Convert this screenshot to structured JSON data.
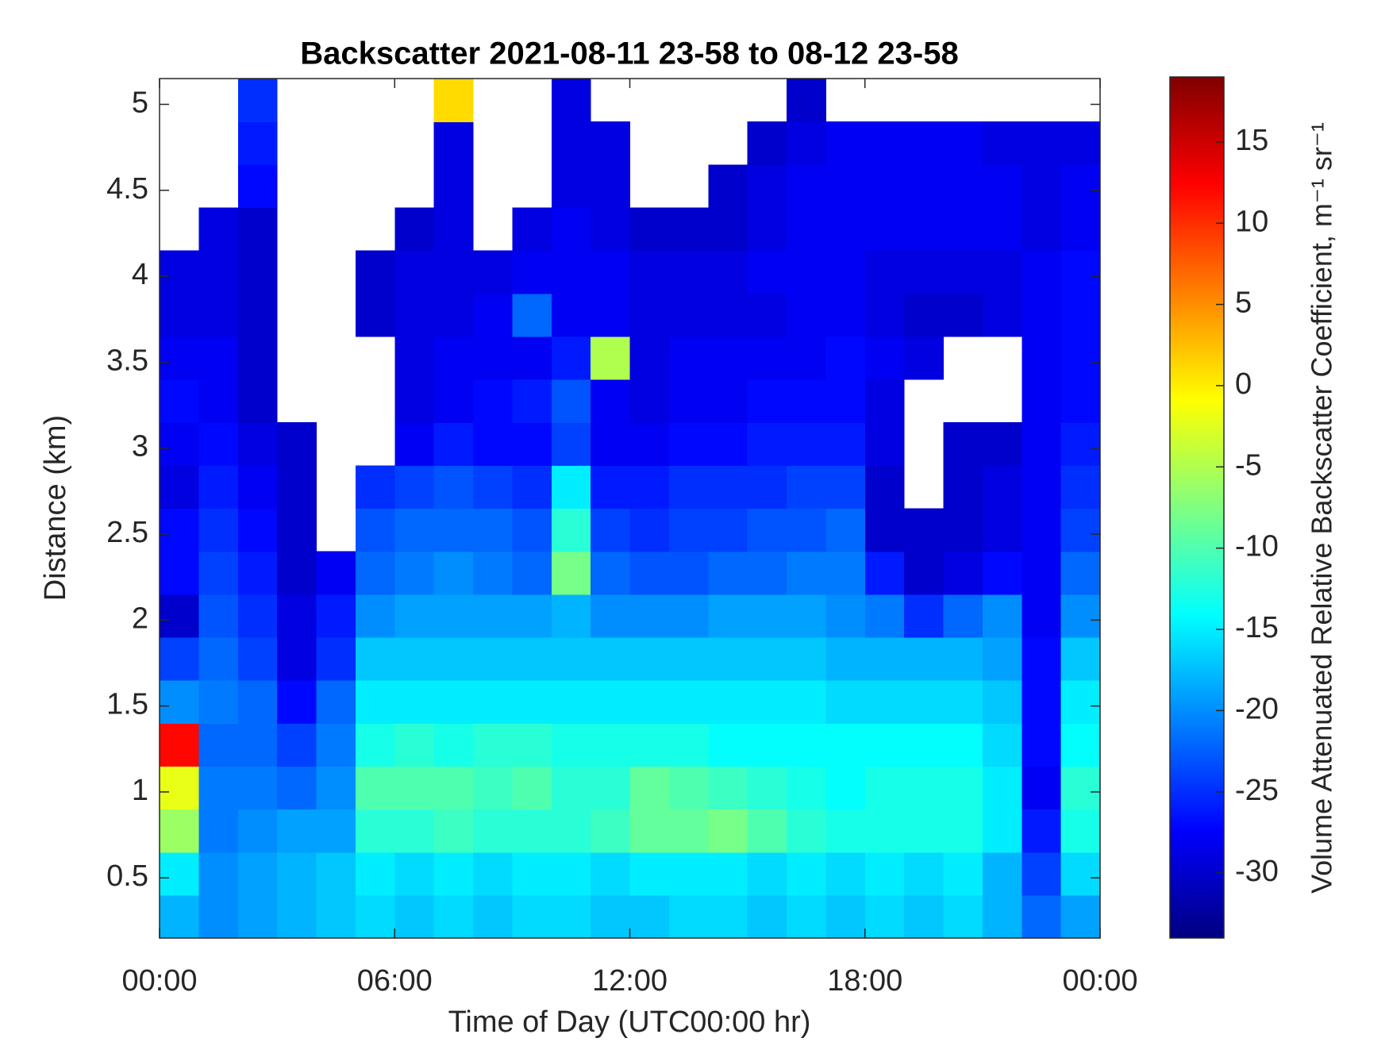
{
  "chart_data": {
    "type": "heatmap",
    "title": "Backscatter 2021-08-11 23-58 to 08-12 23-58",
    "xlabel": "Time of Day (UTC00:00 hr)",
    "ylabel": "Distance (km)",
    "colorbar_label": "Volume Attenuated Relative Backscatter Coefficient, m⁻¹ sr⁻¹",
    "colormap": "jet",
    "x": [
      0.5,
      1.5,
      2.5,
      3.5,
      4.5,
      5.5,
      6.5,
      7.5,
      8.5,
      9.5,
      10.5,
      11.5,
      12.5,
      13.5,
      14.5,
      15.5,
      16.5,
      17.5,
      18.5,
      19.5,
      20.5,
      21.5,
      22.5,
      23.5
    ],
    "y": [
      0.275,
      0.525,
      0.775,
      1.025,
      1.275,
      1.525,
      1.775,
      2.025,
      2.275,
      2.525,
      2.775,
      3.025,
      3.275,
      3.525,
      3.775,
      4.025,
      4.275,
      4.525,
      4.775,
      5.025
    ],
    "values": [
      [
        -18,
        -20,
        -19,
        -18,
        -17,
        -16,
        -17,
        -16,
        -17,
        -16,
        -16,
        -17,
        -17,
        -16,
        -16,
        -17,
        -16,
        -17,
        -16,
        -17,
        -16,
        -18,
        -22,
        -19
      ],
      [
        -15,
        -20,
        -19,
        -18,
        -17,
        -15,
        -16,
        -15,
        -16,
        -15,
        -15,
        -16,
        -15,
        -15,
        -15,
        -16,
        -15,
        -16,
        -15,
        -16,
        -15,
        -18,
        -24,
        -16
      ],
      [
        -6,
        -21,
        -20,
        -19,
        -19,
        -12,
        -12,
        -11,
        -12,
        -12,
        -12,
        -11,
        -9,
        -9,
        -8,
        -10,
        -12,
        -13,
        -13,
        -13,
        -13,
        -15,
        -26,
        -13
      ],
      [
        -2,
        -21,
        -21,
        -22,
        -20,
        -10,
        -10,
        -10,
        -11,
        -10,
        -12,
        -12,
        -9,
        -10,
        -11,
        -12,
        -13,
        -14,
        -13,
        -13,
        -13,
        -15,
        -28,
        -12
      ],
      [
        12,
        -22,
        -22,
        -24,
        -21,
        -13,
        -12,
        -13,
        -12,
        -12,
        -13,
        -13,
        -13,
        -13,
        -14,
        -14,
        -14,
        -14,
        -14,
        -14,
        -14,
        -16,
        -27,
        -14
      ],
      [
        -20,
        -21,
        -22,
        -27,
        -22,
        -15,
        -15,
        -15,
        -15,
        -15,
        -15,
        -15,
        -15,
        -15,
        -15,
        -15,
        -15,
        -16,
        -16,
        -16,
        -16,
        -17,
        -27,
        -15
      ],
      [
        -24,
        -22,
        -24,
        -29,
        -25,
        -17,
        -17,
        -17,
        -17,
        -17,
        -17,
        -17,
        -17,
        -17,
        -17,
        -17,
        -17,
        -18,
        -18,
        -18,
        -18,
        -19,
        -27,
        -17
      ],
      [
        -30,
        -23,
        -25,
        -29,
        -26,
        -20,
        -19,
        -19,
        -19,
        -19,
        -18,
        -20,
        -20,
        -20,
        -19,
        -19,
        -19,
        -20,
        -21,
        -25,
        -22,
        -20,
        -28,
        -20
      ],
      [
        -27,
        -24,
        -26,
        -30,
        -28,
        -22,
        -21,
        -20,
        -21,
        -22,
        -8,
        -22,
        -23,
        -23,
        -22,
        -22,
        -21,
        -21,
        -26,
        -30,
        -29,
        -27,
        -28,
        -22
      ],
      [
        -27,
        -25,
        -27,
        -30,
        null,
        -23,
        -22,
        -22,
        -22,
        -23,
        -12,
        -24,
        -25,
        -24,
        -24,
        -23,
        -23,
        -22,
        -30,
        -30,
        -30,
        -29,
        -28,
        -24
      ],
      [
        -29,
        -26,
        -28,
        -30,
        null,
        -25,
        -24,
        -23,
        -24,
        -25,
        -15,
        -26,
        -26,
        -25,
        -25,
        -25,
        -24,
        -24,
        -30,
        null,
        -30,
        -29,
        -28,
        -25
      ],
      [
        -28,
        -27,
        -29,
        -30,
        null,
        null,
        -28,
        -26,
        -27,
        -27,
        -24,
        -28,
        -28,
        -27,
        -27,
        -26,
        -26,
        -26,
        -29,
        null,
        -30,
        -30,
        -28,
        -26
      ],
      [
        -27,
        -28,
        -30,
        null,
        null,
        null,
        -29,
        -28,
        -27,
        -26,
        -23,
        -28,
        -29,
        -28,
        -28,
        -27,
        -27,
        -27,
        -29,
        null,
        null,
        null,
        -28,
        -27
      ],
      [
        -28,
        -28,
        -30,
        null,
        null,
        null,
        -29,
        -28,
        -28,
        -28,
        -26,
        -5,
        -29,
        -28,
        -28,
        -28,
        -28,
        -27,
        -28,
        -29,
        null,
        null,
        -28,
        -27
      ],
      [
        -29,
        -29,
        -30,
        null,
        null,
        -30,
        -29,
        -29,
        -28,
        -22,
        -28,
        -28,
        -29,
        -29,
        -29,
        -29,
        -28,
        -28,
        -29,
        -30,
        -30,
        -29,
        -28,
        -27
      ],
      [
        -29,
        -29,
        -30,
        null,
        null,
        -30,
        -29,
        -29,
        -29,
        -28,
        -28,
        -28,
        -29,
        -29,
        -29,
        -28,
        -28,
        -28,
        -29,
        -29,
        -29,
        -29,
        -28,
        -27
      ],
      [
        null,
        -29,
        -30,
        null,
        null,
        null,
        -30,
        -29,
        null,
        -29,
        -28,
        -29,
        -30,
        -30,
        -30,
        -29,
        -28,
        -28,
        -28,
        -28,
        -28,
        -28,
        -29,
        -28
      ],
      [
        null,
        null,
        -27,
        null,
        null,
        null,
        null,
        -29,
        null,
        null,
        -29,
        -29,
        null,
        null,
        -30,
        -29,
        -28,
        -28,
        -28,
        -28,
        -28,
        -28,
        -29,
        -28
      ],
      [
        null,
        null,
        -26,
        null,
        null,
        null,
        null,
        -29,
        null,
        null,
        -29,
        -29,
        null,
        null,
        null,
        -30,
        -29,
        -28,
        -28,
        -28,
        -28,
        -29,
        -29,
        -29
      ],
      [
        null,
        null,
        -25,
        null,
        null,
        null,
        null,
        1,
        null,
        null,
        -29,
        null,
        null,
        null,
        null,
        null,
        -30,
        null,
        null,
        null,
        null,
        null,
        null,
        null
      ]
    ],
    "xlim": [
      0,
      24
    ],
    "xticks": [
      {
        "value": 0,
        "label": "00:00"
      },
      {
        "value": 6,
        "label": "06:00"
      },
      {
        "value": 12,
        "label": "12:00"
      },
      {
        "value": 18,
        "label": "18:00"
      },
      {
        "value": 24,
        "label": "00:00"
      }
    ],
    "ylim": [
      0.15,
      5.15
    ],
    "yticks": [
      0.5,
      1,
      1.5,
      2,
      2.5,
      3,
      3.5,
      4,
      4.5,
      5
    ],
    "clim": [
      -34,
      19
    ],
    "cticks": [
      -30,
      -25,
      -20,
      -15,
      -10,
      -5,
      0,
      5,
      10,
      15
    ]
  }
}
